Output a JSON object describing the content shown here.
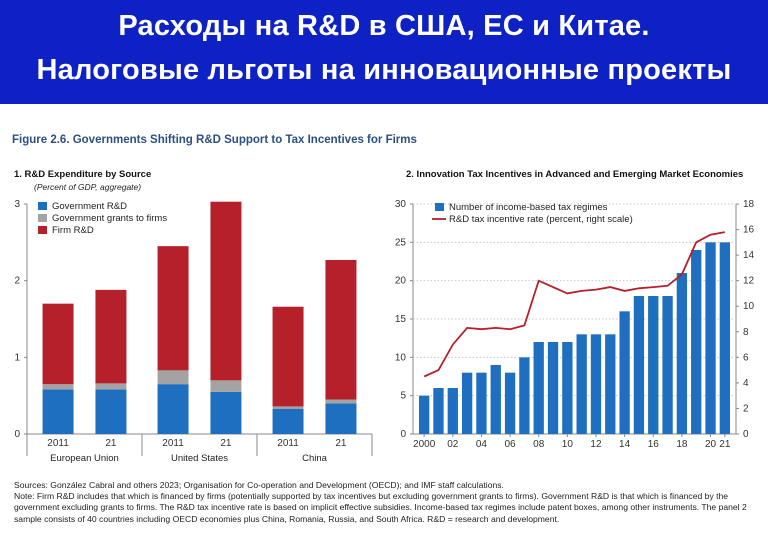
{
  "banner": {
    "line1": "Расходы на R&D в США, ЕС и Китае.",
    "line2": "Налоговые льготы на инновационные проекты"
  },
  "figure": {
    "title": "Figure 2.6. Governments Shifting R&D Support to Tax Incentives for Firms"
  },
  "colors": {
    "banner_bg": "#0d21c4",
    "gov": "#1f6fc0",
    "grants": "#a3a3a3",
    "firm": "#b5202a",
    "bar2": "#1f6fc0",
    "line2": "#b5202a"
  },
  "notes": {
    "sources": "Sources: González Cabral and others 2023; Organisation for Co-operation and Development (OECD); and IMF staff calculations.",
    "note": "Note: Firm R&D includes that which is financed by firms (potentially supported by tax incentives but excluding government grants to firms). Government R&D is that which is financed by the government excluding grants to firms. The R&D tax incentive rate is based on implicit effective subsidies. Income-based tax regimes include patent boxes, among other instruments. The panel 2 sample consists of 40 countries including OECD economies plus China, Romania, Russia, and South Africa. R&D = research and development."
  },
  "chart_data": [
    {
      "type": "bar",
      "stacked": true,
      "title": "1. R&D Expenditure by Source",
      "subtitle": "(Percent of GDP, aggregate)",
      "categories": [
        "2011",
        "21",
        "2011",
        "21",
        "2011",
        "21"
      ],
      "groups": [
        "European Union",
        "United States",
        "China"
      ],
      "series": [
        {
          "name": "Government R&D",
          "values": [
            0.58,
            0.58,
            0.65,
            0.55,
            0.33,
            0.4
          ]
        },
        {
          "name": "Government grants to firms",
          "values": [
            0.07,
            0.08,
            0.18,
            0.15,
            0.03,
            0.05
          ]
        },
        {
          "name": "Firm R&D",
          "values": [
            1.05,
            1.22,
            1.62,
            2.33,
            1.3,
            1.82
          ]
        }
      ],
      "ylim": [
        0,
        3
      ],
      "yticks": [
        0,
        1,
        2,
        3
      ],
      "legend": "top-left"
    },
    {
      "type": "bar+line",
      "title": "2. Innovation Tax Incentives in Advanced and Emerging Market Economies",
      "x": [
        2000,
        2001,
        2002,
        2003,
        2004,
        2005,
        2006,
        2007,
        2008,
        2009,
        2010,
        2011,
        2012,
        2013,
        2014,
        2015,
        2016,
        2017,
        2018,
        2019,
        2020,
        2021
      ],
      "xticks": [
        "2000",
        "02",
        "04",
        "06",
        "08",
        "10",
        "12",
        "14",
        "16",
        "18",
        "20",
        "21"
      ],
      "bars": {
        "name": "Number of income-based tax regimes",
        "values": [
          5,
          6,
          6,
          8,
          8,
          9,
          8,
          10,
          12,
          12,
          12,
          13,
          13,
          13,
          16,
          18,
          18,
          18,
          21,
          24,
          25,
          25
        ]
      },
      "line": {
        "name": "R&D tax incentive rate (percent, right scale)",
        "values": [
          4.5,
          5.0,
          7.0,
          8.3,
          8.2,
          8.3,
          8.2,
          8.5,
          12.0,
          11.5,
          11.0,
          11.2,
          11.3,
          11.5,
          11.2,
          11.4,
          11.5,
          11.6,
          12.5,
          15.0,
          15.6,
          15.8
        ]
      },
      "ylim_left": [
        0,
        30
      ],
      "yticks_left": [
        0,
        5,
        10,
        15,
        20,
        25,
        30
      ],
      "ylim_right": [
        0,
        18
      ],
      "yticks_right": [
        0,
        2,
        4,
        6,
        8,
        10,
        12,
        14,
        16,
        18
      ],
      "legend": "top-left"
    }
  ]
}
